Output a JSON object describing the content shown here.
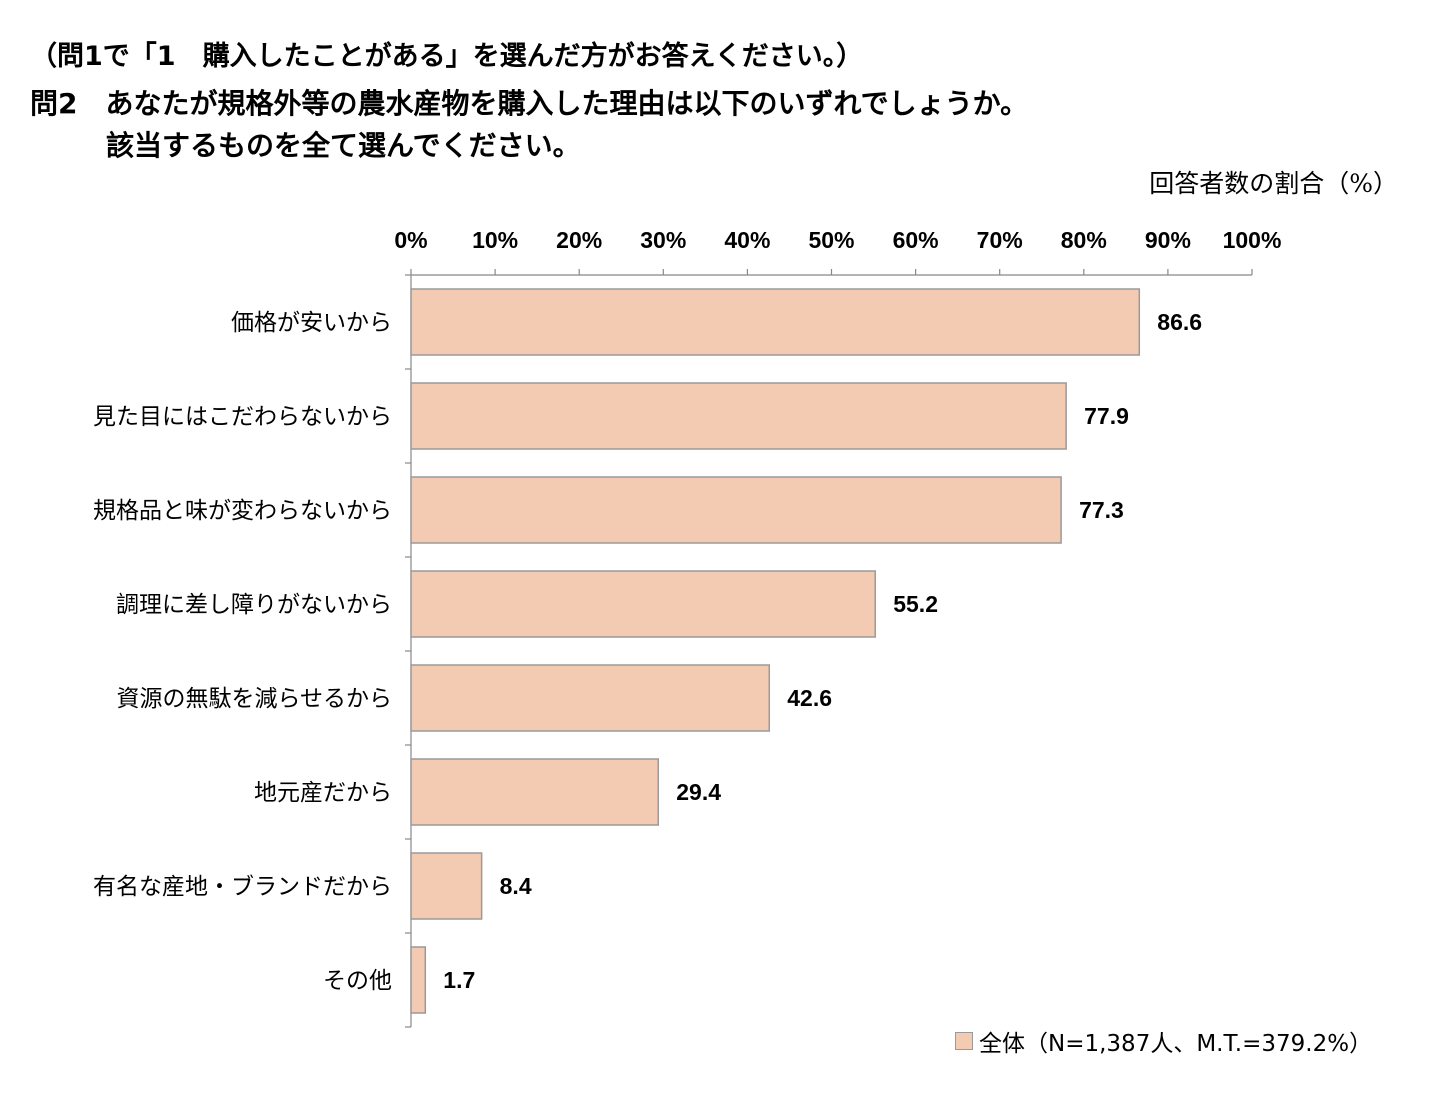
{
  "header": {
    "note": "（問1で「1　購入したことがある」を選んだ方がお答えください。）",
    "question_line1": "問2　あなたが規格外等の農水産物を購入した理由は以下のいずれでしょうか。",
    "question_line2": "該当するものを全て選んでください。",
    "unit_label": "回答者数の割合（%）"
  },
  "chart_data": {
    "type": "bar",
    "orientation": "horizontal",
    "categories": [
      "価格が安いから",
      "見た目にはこだわらないから",
      "規格品と味が変わらないから",
      "調理に差し障りがないから",
      "資源の無駄を減らせるから",
      "地元産だから",
      "有名な産地・ブランドだから",
      "その他"
    ],
    "series": [
      {
        "name": "全体（N=1,387人、M.T.=379.2%）",
        "values": [
          86.6,
          77.9,
          77.3,
          55.2,
          42.6,
          29.4,
          8.4,
          1.7
        ],
        "color": "#f2cbb2"
      }
    ],
    "data_labels": [
      "86.6",
      "77.9",
      "77.3",
      "55.2",
      "42.6",
      "29.4",
      "8.4",
      "1.7"
    ],
    "xlim": [
      0,
      100
    ],
    "x_ticks": [
      "0%",
      "10%",
      "20%",
      "30%",
      "40%",
      "50%",
      "60%",
      "70%",
      "80%",
      "90%",
      "100%"
    ],
    "x_axis_position": "top",
    "grid": false,
    "legend_position": "bottom-right",
    "bar_edge_color": "#9a9a9a",
    "axis_color": "#888888"
  }
}
